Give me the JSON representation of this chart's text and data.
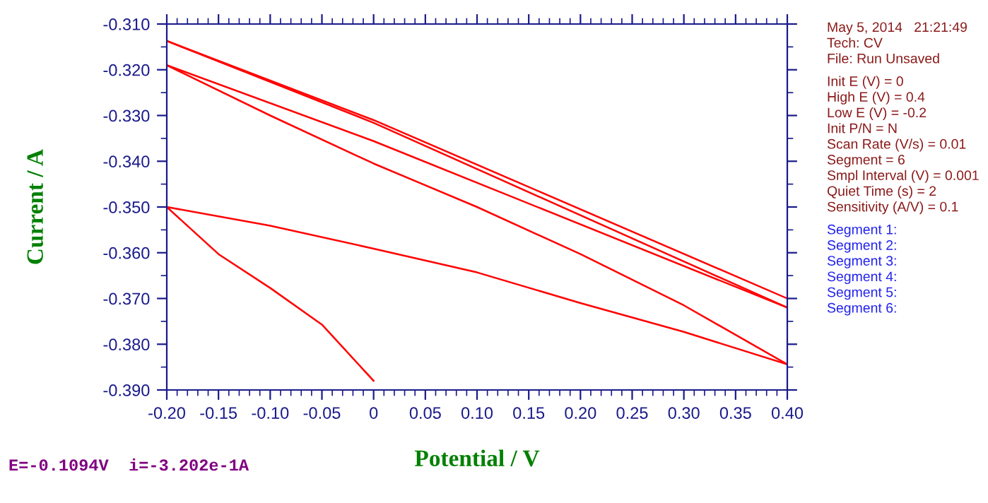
{
  "chart_data": {
    "type": "line",
    "xlabel": "Potential / V",
    "ylabel": "Current / A",
    "xlim": [
      -0.2,
      0.4
    ],
    "ylim": [
      -0.39,
      -0.31
    ],
    "xticks": [
      {
        "value": -0.2,
        "label": "-0.20"
      },
      {
        "value": -0.15,
        "label": "-0.15"
      },
      {
        "value": -0.1,
        "label": "-0.10"
      },
      {
        "value": -0.05,
        "label": "-0.05"
      },
      0,
      {
        "value": 0.05,
        "label": "0.05"
      },
      {
        "value": 0.1,
        "label": "0.10"
      },
      {
        "value": 0.15,
        "label": "0.15"
      },
      {
        "value": 0.2,
        "label": "0.20"
      },
      {
        "value": 0.25,
        "label": "0.25"
      },
      {
        "value": 0.3,
        "label": "0.30"
      },
      {
        "value": 0.35,
        "label": "0.35"
      },
      {
        "value": 0.4,
        "label": "0.40"
      }
    ],
    "yticks": [
      {
        "value": -0.31,
        "label": "-0.310"
      },
      {
        "value": -0.32,
        "label": "-0.320"
      },
      {
        "value": -0.33,
        "label": "-0.330"
      },
      {
        "value": -0.34,
        "label": "-0.340"
      },
      {
        "value": -0.35,
        "label": "-0.350"
      },
      {
        "value": -0.36,
        "label": "-0.360"
      },
      {
        "value": -0.37,
        "label": "-0.370"
      },
      {
        "value": -0.38,
        "label": "-0.380"
      },
      {
        "value": -0.39,
        "label": "-0.390"
      }
    ],
    "grid": false,
    "legend": false,
    "marker": "none",
    "line_style": "solid",
    "series": [
      {
        "color": "#ff0000",
        "x": [
          0,
          -0.05,
          -0.1,
          -0.15,
          -0.2
        ],
        "values": [
          -0.388,
          -0.3757,
          -0.3677,
          -0.3603,
          -0.35
        ]
      },
      {
        "color": "#ff0000",
        "x": [
          -0.2,
          -0.1,
          0,
          0.1,
          0.2,
          0.3,
          0.4
        ],
        "values": [
          -0.35,
          -0.3541,
          -0.3591,
          -0.3643,
          -0.371,
          -0.3773,
          -0.3844
        ]
      },
      {
        "color": "#ff0000",
        "x": [
          0.4,
          0.3,
          0.2,
          0.1,
          0,
          -0.1,
          -0.2
        ],
        "values": [
          -0.3844,
          -0.3715,
          -0.3603,
          -0.35,
          -0.3405,
          -0.33,
          -0.319
        ]
      },
      {
        "color": "#ff0000",
        "x": [
          -0.2,
          0,
          0.4
        ],
        "values": [
          -0.319,
          -0.3356,
          -0.372
        ]
      },
      {
        "color": "#ff0000",
        "x": [
          0.4,
          0,
          -0.2
        ],
        "values": [
          -0.372,
          -0.3316,
          -0.3137
        ]
      },
      {
        "color": "#ff0000",
        "x": [
          -0.2,
          0,
          0.4
        ],
        "values": [
          -0.3137,
          -0.331,
          -0.37
        ]
      }
    ],
    "annotations": [
      "May 5, 2014   21:21:49",
      "Tech: CV",
      "File: Run Unsaved",
      "Init E (V) = 0",
      "High E (V) = 0.4",
      "Low E (V) = -0.2",
      "Init P/N = N",
      "Scan Rate (V/s) = 0.01",
      "Segment = 6",
      "Smpl Interval (V) = 0.001",
      "Quiet Time (s) = 2",
      "Sensitivity (A/V) = 0.1",
      "Segment 1:",
      "Segment 2:",
      "Segment 3:",
      "Segment 4:",
      "Segment 5:",
      "Segment 6:",
      "E=-0.1094V  i=-3.202e-1A"
    ]
  }
}
